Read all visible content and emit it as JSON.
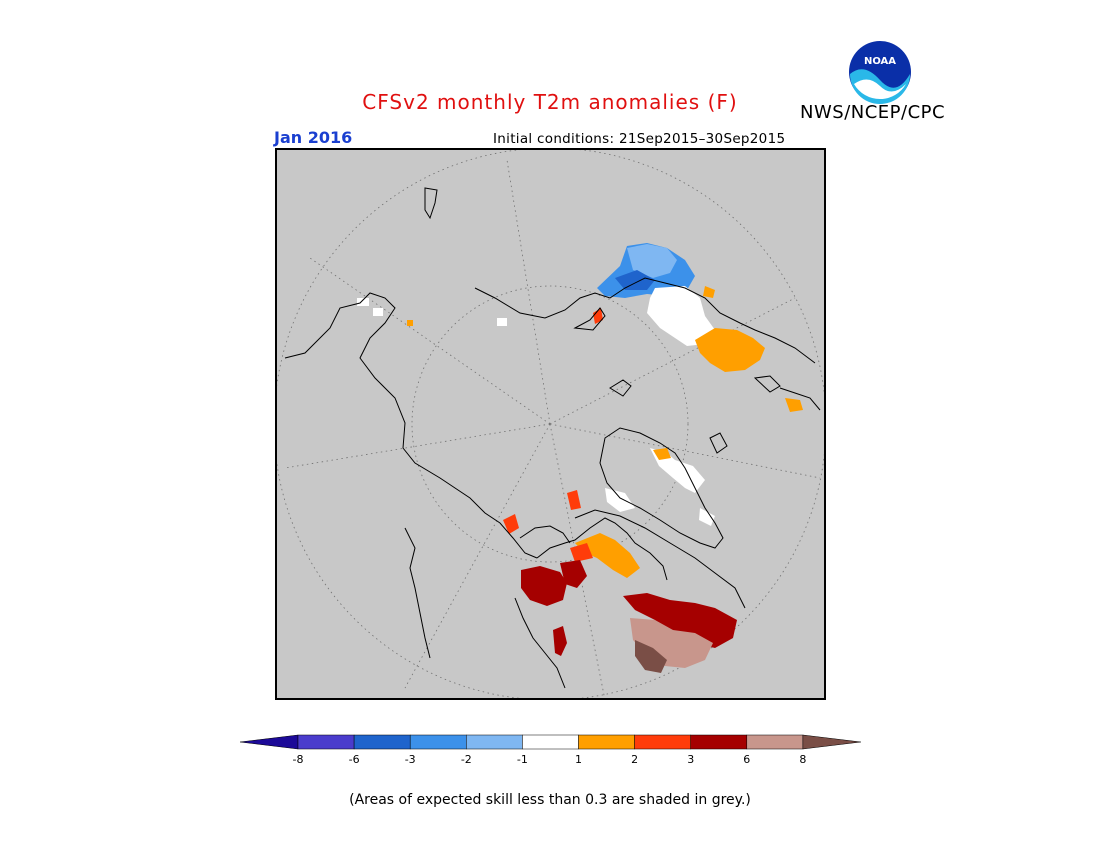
{
  "header": {
    "title": "CFSv2 monthly T2m anomalies (F)",
    "agency": "NWS/NCEP/CPC",
    "logo_text": "NOAA",
    "valid_month": "Jan 2016",
    "initial_conditions": "Initial conditions: 21Sep2015–30Sep2015"
  },
  "map": {
    "projection": "north-polar-stereographic",
    "background_color": "#c8c8c8",
    "coastline_color": "#000000",
    "graticule": "dotted"
  },
  "legend": {
    "tick_labels": [
      "-8",
      "-6",
      "-3",
      "-2",
      "-1",
      "1",
      "2",
      "3",
      "6",
      "8"
    ],
    "bins": [
      {
        "range": "< -8",
        "color": "#1c0a98"
      },
      {
        "range": "-8 to -6",
        "color": "#4a3ccc"
      },
      {
        "range": "-6 to -3",
        "color": "#1f64cc"
      },
      {
        "range": "-3 to -2",
        "color": "#3c91ea"
      },
      {
        "range": "-2 to -1",
        "color": "#7fb7f2"
      },
      {
        "range": "-1 to 1",
        "color": "#ffffff"
      },
      {
        "range": "1 to 2",
        "color": "#ff9f00"
      },
      {
        "range": "2 to 3",
        "color": "#ff3c0a"
      },
      {
        "range": "3 to 6",
        "color": "#a50000"
      },
      {
        "range": "6 to 8",
        "color": "#c8968c"
      },
      {
        "range": "> 8",
        "color": "#7a4e46"
      }
    ]
  },
  "footnote": "(Areas of expected skill less than 0.3 are shaded in grey.)"
}
